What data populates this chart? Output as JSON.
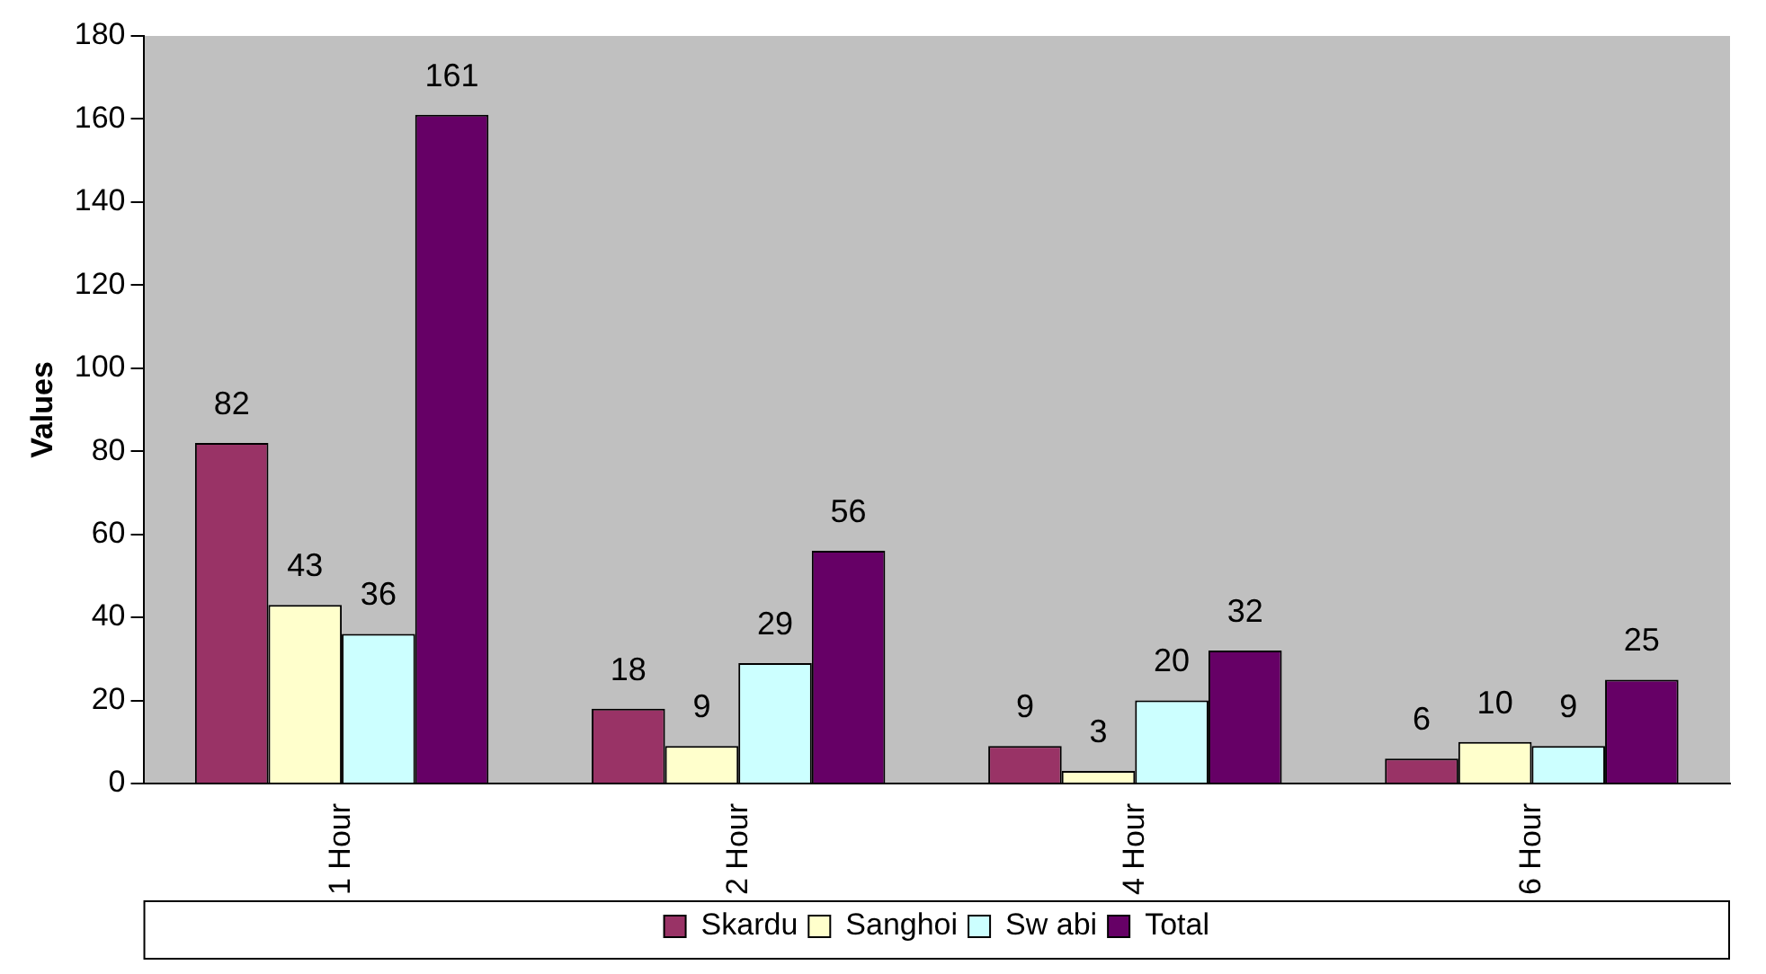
{
  "chart_data": {
    "type": "bar",
    "ylabel": "Values",
    "categories": [
      "1 Hour",
      "2 Hour",
      "4 Hour",
      "6 Hour"
    ],
    "series": [
      {
        "name": "Skardu",
        "color": "#993366",
        "values": [
          82,
          18,
          9,
          6
        ]
      },
      {
        "name": "Sanghoi",
        "color": "#ffffcc",
        "values": [
          43,
          9,
          3,
          10
        ]
      },
      {
        "name": "Sw abi",
        "color": "#ccffff",
        "values": [
          36,
          29,
          20,
          9
        ]
      },
      {
        "name": "Total",
        "color": "#660066",
        "values": [
          161,
          56,
          32,
          25
        ]
      }
    ],
    "ylim": [
      0,
      180
    ],
    "yticks": [
      0,
      20,
      40,
      60,
      80,
      100,
      120,
      140,
      160,
      180
    ],
    "grid": false,
    "legend": "bottom",
    "data_labels": true
  }
}
